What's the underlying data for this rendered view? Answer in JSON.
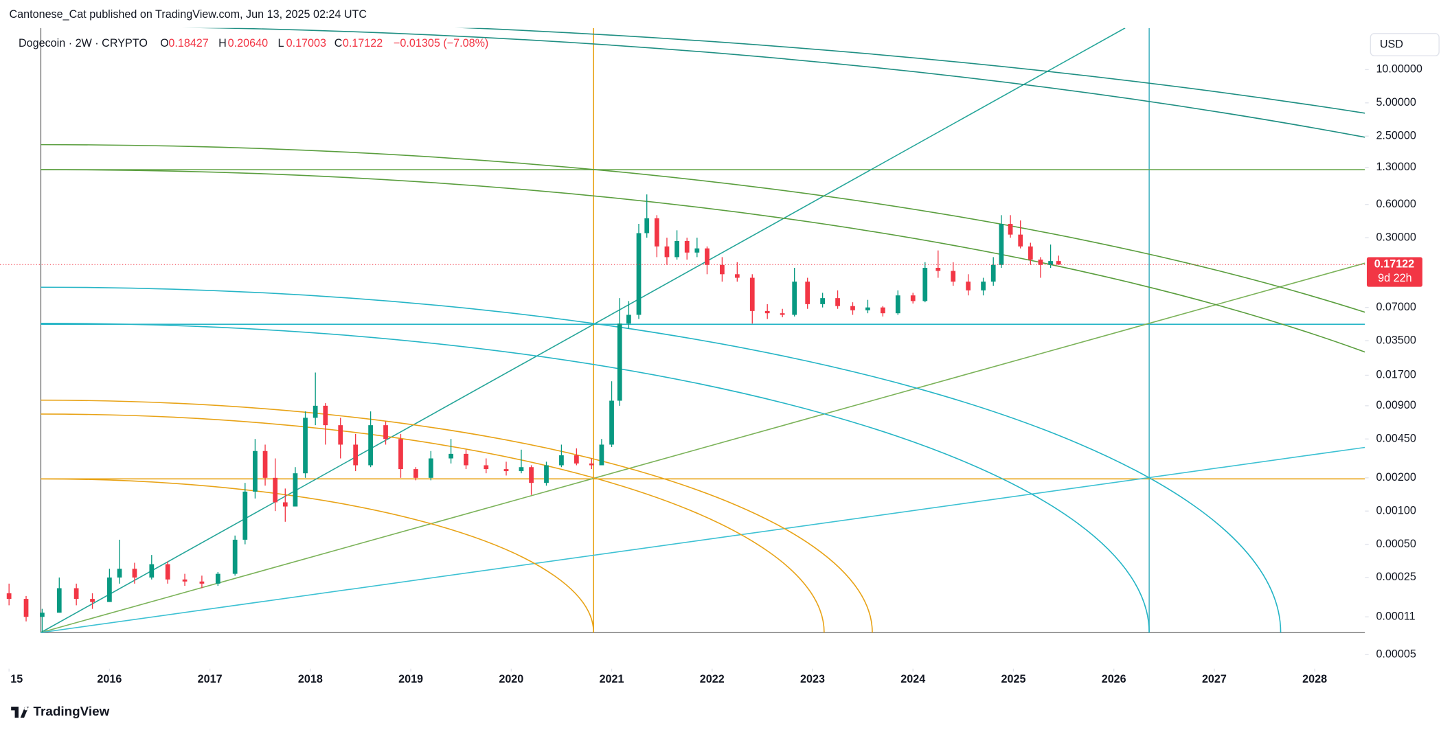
{
  "header": {
    "publisher": "Cantonese_Cat published on TradingView.com, Jun 13, 2025 02:24 UTC"
  },
  "chart_data": {
    "type": "candlestick",
    "title": "Dogecoin · 2W · CRYPTO",
    "legend": {
      "o_label": "O",
      "open": "0.18427",
      "h_label": "H",
      "high": "0.20640",
      "l_label": "L",
      "low": "0.17003",
      "c_label": "C",
      "close": "0.17122",
      "change": "−0.01305 (−7.08%)"
    },
    "currency": "USD",
    "last_price_label": "0.17122",
    "countdown": "9d 22h",
    "log_scale": true,
    "up_color": "#089981",
    "down_color": "#f23645",
    "x": [
      2015.0,
      2015.17,
      2015.33,
      2015.5,
      2015.67,
      2015.83,
      2016.0,
      2016.1,
      2016.25,
      2016.42,
      2016.58,
      2016.75,
      2016.92,
      2017.08,
      2017.25,
      2017.35,
      2017.45,
      2017.55,
      2017.65,
      2017.75,
      2017.85,
      2017.95,
      2018.05,
      2018.15,
      2018.3,
      2018.45,
      2018.6,
      2018.75,
      2018.9,
      2019.05,
      2019.2,
      2019.4,
      2019.55,
      2019.75,
      2019.95,
      2020.1,
      2020.2,
      2020.35,
      2020.5,
      2020.65,
      2020.8,
      2020.9,
      2021.0,
      2021.08,
      2021.17,
      2021.27,
      2021.35,
      2021.45,
      2021.55,
      2021.65,
      2021.75,
      2021.85,
      2021.95,
      2022.1,
      2022.25,
      2022.4,
      2022.55,
      2022.7,
      2022.82,
      2022.95,
      2023.1,
      2023.25,
      2023.4,
      2023.55,
      2023.7,
      2023.85,
      2024.0,
      2024.12,
      2024.25,
      2024.4,
      2024.55,
      2024.7,
      2024.8,
      2024.88,
      2024.97,
      2025.07,
      2025.17,
      2025.27,
      2025.37,
      2025.45
    ],
    "open": [
      0.00018,
      0.00016,
      0.00011,
      0.00012,
      0.0002,
      0.00016,
      0.00015,
      0.00025,
      0.0003,
      0.00025,
      0.00033,
      0.00024,
      0.00023,
      0.00022,
      0.00027,
      0.00055,
      0.0015,
      0.0035,
      0.002,
      0.0012,
      0.0011,
      0.0022,
      0.007,
      0.009,
      0.006,
      0.004,
      0.0026,
      0.006,
      0.0045,
      0.0024,
      0.002,
      0.003,
      0.0033,
      0.0026,
      0.0024,
      0.0023,
      0.0025,
      0.0018,
      0.0026,
      0.0032,
      0.0027,
      0.0026,
      0.004,
      0.01,
      0.05,
      0.06,
      0.33,
      0.45,
      0.25,
      0.2,
      0.28,
      0.22,
      0.24,
      0.17,
      0.14,
      0.13,
      0.065,
      0.062,
      0.06,
      0.12,
      0.075,
      0.085,
      0.072,
      0.066,
      0.07,
      0.062,
      0.09,
      0.08,
      0.16,
      0.15,
      0.12,
      0.1,
      0.12,
      0.17,
      0.4,
      0.32,
      0.25,
      0.19,
      0.17,
      0.18427
    ],
    "high": [
      0.00022,
      0.00017,
      0.00013,
      0.00025,
      0.00022,
      0.00018,
      0.0003,
      0.00055,
      0.00034,
      0.0004,
      0.00035,
      0.00027,
      0.00026,
      0.00028,
      0.0006,
      0.0018,
      0.0045,
      0.004,
      0.003,
      0.0016,
      0.0025,
      0.008,
      0.018,
      0.0095,
      0.007,
      0.005,
      0.008,
      0.0065,
      0.005,
      0.0025,
      0.0035,
      0.0045,
      0.0036,
      0.003,
      0.0028,
      0.0036,
      0.0026,
      0.0028,
      0.004,
      0.0037,
      0.003,
      0.0045,
      0.015,
      0.085,
      0.08,
      0.4,
      0.74,
      0.48,
      0.3,
      0.35,
      0.3,
      0.3,
      0.25,
      0.2,
      0.18,
      0.14,
      0.075,
      0.068,
      0.16,
      0.13,
      0.095,
      0.1,
      0.078,
      0.082,
      0.072,
      0.1,
      0.095,
      0.18,
      0.23,
      0.18,
      0.14,
      0.13,
      0.2,
      0.48,
      0.48,
      0.43,
      0.27,
      0.2,
      0.26,
      0.2064
    ],
    "low": [
      0.00014,
      0.0001,
      8e-05,
      0.00012,
      0.00014,
      0.00013,
      0.00015,
      0.00022,
      0.00022,
      0.00024,
      0.00022,
      0.00021,
      0.0002,
      0.00021,
      0.00026,
      0.0005,
      0.0013,
      0.0017,
      0.001,
      0.0008,
      0.0011,
      0.002,
      0.006,
      0.004,
      0.003,
      0.0023,
      0.0025,
      0.004,
      0.002,
      0.0019,
      0.0019,
      0.0027,
      0.0024,
      0.0022,
      0.0021,
      0.0022,
      0.0014,
      0.0017,
      0.0025,
      0.0026,
      0.0024,
      0.0026,
      0.0038,
      0.009,
      0.045,
      0.055,
      0.3,
      0.2,
      0.17,
      0.19,
      0.19,
      0.2,
      0.14,
      0.12,
      0.12,
      0.05,
      0.055,
      0.057,
      0.058,
      0.068,
      0.07,
      0.068,
      0.06,
      0.062,
      0.058,
      0.06,
      0.076,
      0.078,
      0.13,
      0.11,
      0.09,
      0.09,
      0.11,
      0.16,
      0.3,
      0.24,
      0.17,
      0.13,
      0.16,
      0.17003
    ],
    "close": [
      0.00016,
      0.00011,
      0.00012,
      0.0002,
      0.00016,
      0.00015,
      0.00025,
      0.0003,
      0.00025,
      0.00033,
      0.00024,
      0.00023,
      0.00022,
      0.00027,
      0.00055,
      0.0015,
      0.0035,
      0.002,
      0.0012,
      0.0011,
      0.0022,
      0.007,
      0.009,
      0.006,
      0.004,
      0.0026,
      0.006,
      0.0045,
      0.0024,
      0.002,
      0.003,
      0.0033,
      0.0026,
      0.0024,
      0.0023,
      0.0025,
      0.0018,
      0.0026,
      0.0032,
      0.0027,
      0.0026,
      0.004,
      0.01,
      0.05,
      0.06,
      0.33,
      0.45,
      0.25,
      0.2,
      0.28,
      0.22,
      0.24,
      0.17,
      0.14,
      0.13,
      0.065,
      0.062,
      0.06,
      0.12,
      0.075,
      0.085,
      0.072,
      0.066,
      0.07,
      0.062,
      0.09,
      0.08,
      0.16,
      0.15,
      0.12,
      0.1,
      0.12,
      0.17,
      0.4,
      0.32,
      0.25,
      0.19,
      0.17,
      0.18427,
      0.17122
    ],
    "xlim": [
      2014.91,
      2028.5
    ],
    "xticks": [
      {
        "value": 2015,
        "label": "15"
      },
      2016,
      2017,
      2018,
      2019,
      2020,
      2021,
      2022,
      2023,
      2024,
      2025,
      2026,
      2027,
      2028
    ],
    "ylim": [
      3.73e-05,
      23.85
    ],
    "yticks": [
      {
        "value": 10,
        "label": "10.00000"
      },
      {
        "value": 5,
        "label": "5.00000"
      },
      {
        "value": 2.5,
        "label": "2.50000"
      },
      {
        "value": 1.3,
        "label": "1.30000"
      },
      {
        "value": 0.6,
        "label": "0.60000"
      },
      {
        "value": 0.3,
        "label": "0.30000"
      },
      {
        "value": 0.07,
        "label": "0.07000"
      },
      {
        "value": 0.035,
        "label": "0.03500"
      },
      {
        "value": 0.017,
        "label": "0.01700"
      },
      {
        "value": 0.009,
        "label": "0.00900"
      },
      {
        "value": 0.0045,
        "label": "0.00450"
      },
      {
        "value": 0.002,
        "label": "0.00200"
      },
      {
        "value": 0.001,
        "label": "0.00100"
      },
      {
        "value": 0.0005,
        "label": "0.00050"
      },
      {
        "value": 0.00025,
        "label": "0.00025"
      },
      {
        "value": 0.00011,
        "label": "0.00011"
      },
      {
        "value": 5e-05,
        "label": "0.00005"
      }
    ]
  },
  "footer": {
    "brand": "TradingView"
  }
}
